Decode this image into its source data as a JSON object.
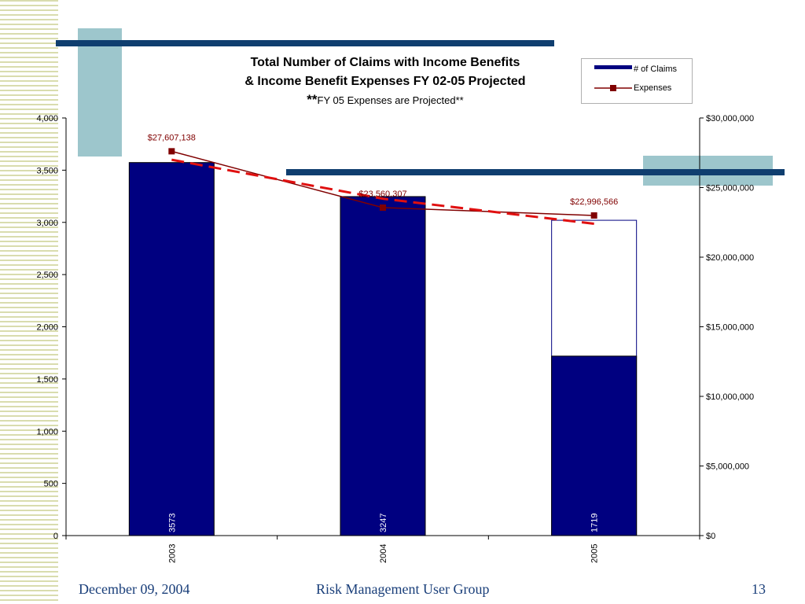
{
  "slide": {
    "footer_date": "December 09, 2004",
    "footer_center": "Risk Management User Group",
    "page_number": "13"
  },
  "colors": {
    "bar": "#000080",
    "expenses_line": "#800000",
    "trend_line": "#e01010",
    "accent_blue": "#0f3e6f",
    "accent_teal": "#9dc6cc",
    "footer_text": "#1a3f7a"
  },
  "chart_data": {
    "type": "bar",
    "title_line1": "Total Number of Claims with Income Benefits",
    "title_line2": "& Income Benefit Expenses FY 02-05 Projected",
    "subtitle_stars": "**",
    "subtitle": "FY 05 Expenses are Projected**",
    "categories": [
      "2003",
      "2004",
      "2005"
    ],
    "series": [
      {
        "name": "# of Claims",
        "type": "bar",
        "axis": "left",
        "values": [
          3573,
          3247,
          1719
        ],
        "data_labels": [
          "3573",
          "3247",
          "1719"
        ]
      },
      {
        "name": "Expenses",
        "type": "line",
        "axis": "right",
        "values": [
          27607138,
          23560307,
          22996566
        ],
        "data_labels": [
          "$27,607,138",
          "$23,560,307",
          "$22,996,566"
        ]
      }
    ],
    "projected_outline": {
      "category": "2005",
      "value": 3020
    },
    "trend_line": {
      "style": "dashed",
      "values": [
        27000000,
        24200000,
        22400000
      ]
    },
    "y_left": {
      "ylim": [
        0,
        4000
      ],
      "ticks": [
        0,
        500,
        1000,
        1500,
        2000,
        2500,
        3000,
        3500,
        4000
      ],
      "tick_labels": [
        "0",
        "500",
        "1,000",
        "1,500",
        "2,000",
        "2,500",
        "3,000",
        "3,500",
        "4,000"
      ]
    },
    "y_right": {
      "ylim": [
        0,
        30000000
      ],
      "ticks": [
        0,
        5000000,
        10000000,
        15000000,
        20000000,
        25000000,
        30000000
      ],
      "tick_labels": [
        "$0",
        "$5,000,000",
        "$10,000,000",
        "$15,000,000",
        "$20,000,000",
        "$25,000,000",
        "$30,000,000"
      ]
    },
    "legend": {
      "placement": "top-right",
      "entries": [
        "# of Claims",
        "Expenses"
      ]
    },
    "grid": false
  }
}
